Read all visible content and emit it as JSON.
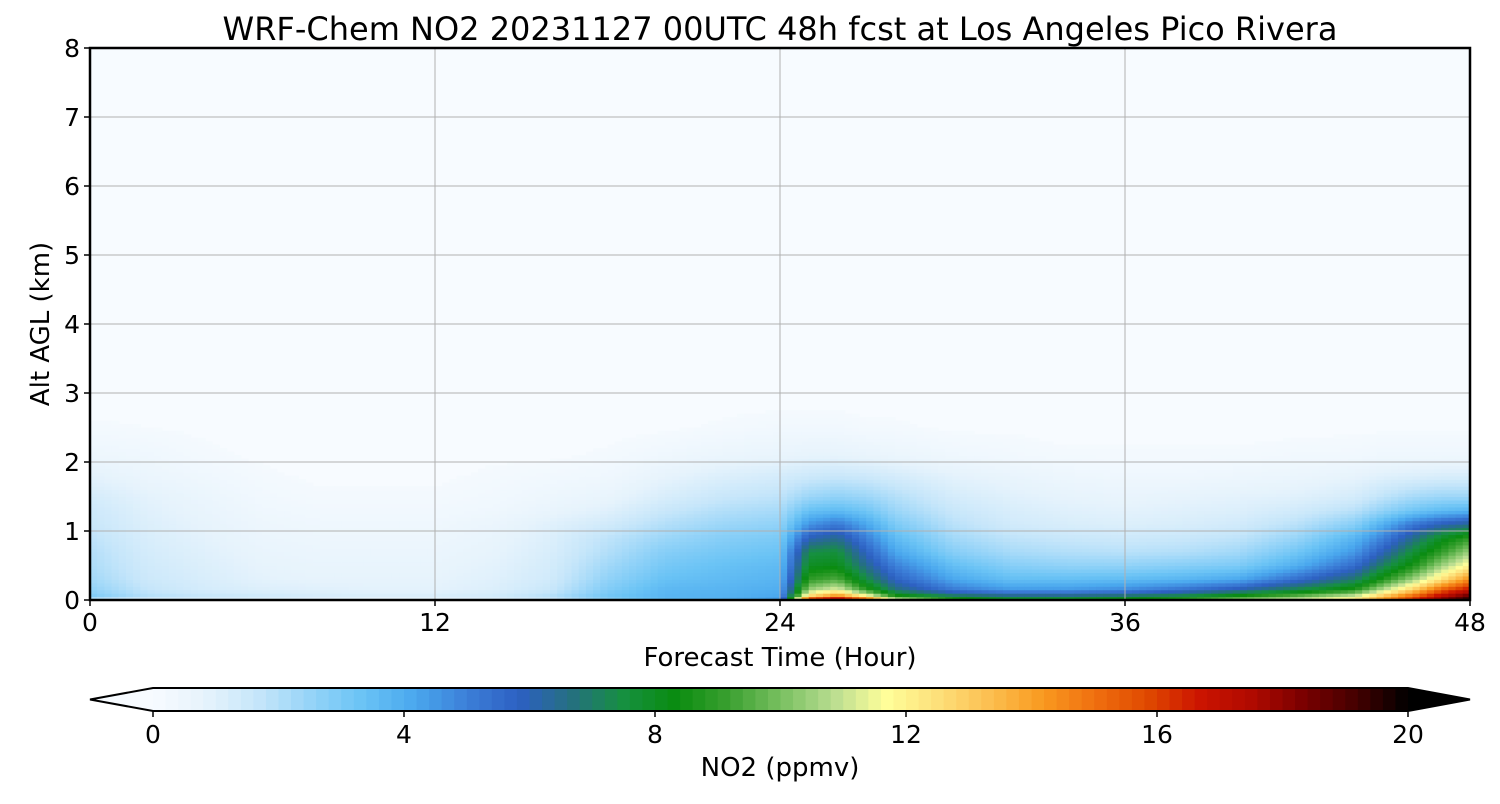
{
  "chart_data": {
    "type": "heatmap",
    "title": "WRF-Chem NO2  20231127 00UTC 48h fcst at Los Angeles Pico Rivera",
    "xlabel": "Forecast Time (Hour)",
    "ylabel": "Alt AGL (km)",
    "xlim": [
      0,
      48
    ],
    "ylim": [
      0,
      8
    ],
    "xticks": [
      "0",
      "12",
      "24",
      "36",
      "48"
    ],
    "yticks": [
      "0",
      "1",
      "2",
      "3",
      "4",
      "5",
      "6",
      "7",
      "8"
    ],
    "grid": true,
    "colorbar": {
      "label": "NO2  (ppmv)",
      "range": [
        0,
        20
      ],
      "ticks": [
        "0",
        "4",
        "8",
        "12",
        "16",
        "20"
      ],
      "extend": "both",
      "colors": [
        "#f7fbff",
        "#e6f3fc",
        "#c6e6fa",
        "#96d4f8",
        "#6ac3f5",
        "#4aa8ee",
        "#3c7fd8",
        "#2d60c2",
        "#257080",
        "#169040",
        "#0a8c10",
        "#3aa030",
        "#78c060",
        "#b8dc90",
        "#ffff9a",
        "#fde07a",
        "#fcbf50",
        "#f99a20",
        "#f07010",
        "#e04a00",
        "#cc1400",
        "#b00a00",
        "#7a0000",
        "#450000",
        "#000000"
      ]
    },
    "x": [
      0,
      2,
      4,
      6,
      8,
      10,
      12,
      14,
      16,
      18,
      20,
      22,
      24,
      25,
      26,
      27,
      28,
      30,
      32,
      34,
      36,
      38,
      40,
      42,
      44,
      45,
      46,
      47,
      48
    ],
    "y": [
      0,
      0.05,
      0.15,
      0.3,
      0.5,
      0.7,
      0.9,
      1.1,
      1.3,
      1.5,
      1.8,
      2.1,
      2.5,
      3,
      8
    ],
    "z": [
      [
        1.2,
        0.8,
        0.8,
        0.8,
        0.6,
        0.5,
        0.6,
        0.8,
        1.2,
        2.5,
        3.5,
        3.8,
        4.5,
        18.0,
        19.0,
        17.0,
        12.0,
        9.5,
        8.5,
        8.5,
        9.0,
        9.5,
        10.5,
        11.5,
        12.5,
        14.5,
        16.5,
        18.5,
        20.0
      ],
      [
        3.0,
        2.0,
        1.7,
        1.5,
        1.3,
        1.2,
        1.2,
        1.4,
        2.0,
        3.2,
        3.8,
        3.9,
        4.2,
        13.0,
        15.0,
        12.5,
        9.0,
        7.5,
        7.0,
        7.0,
        7.3,
        7.8,
        9.0,
        10.0,
        11.5,
        13.5,
        15.5,
        17.5,
        19.0
      ],
      [
        2.6,
        1.7,
        1.3,
        1.1,
        1.0,
        0.9,
        0.9,
        1.1,
        1.6,
        2.9,
        3.7,
        3.8,
        4.0,
        10.5,
        11.5,
        9.0,
        6.8,
        5.2,
        4.5,
        4.5,
        4.8,
        5.4,
        6.2,
        7.5,
        8.8,
        11.0,
        13.0,
        15.5,
        17.0
      ],
      [
        2.3,
        1.5,
        1.2,
        0.9,
        0.8,
        0.8,
        0.8,
        1.0,
        1.4,
        2.6,
        3.4,
        3.6,
        3.8,
        9.0,
        9.5,
        7.5,
        5.8,
        4.2,
        3.5,
        3.5,
        3.6,
        3.8,
        4.2,
        5.5,
        7.0,
        8.8,
        10.5,
        12.5,
        14.5
      ],
      [
        2.1,
        1.4,
        1.1,
        0.8,
        0.7,
        0.7,
        0.7,
        0.9,
        1.3,
        2.3,
        3.1,
        3.4,
        3.6,
        8.0,
        8.2,
        6.5,
        5.0,
        3.5,
        2.8,
        2.6,
        2.6,
        2.8,
        3.0,
        4.0,
        5.5,
        7.2,
        8.6,
        10.5,
        12.0
      ],
      [
        2.0,
        1.3,
        1.0,
        0.7,
        0.6,
        0.6,
        0.6,
        0.8,
        1.2,
        2.0,
        2.8,
        3.1,
        3.3,
        7.4,
        7.6,
        5.8,
        4.2,
        2.8,
        2.2,
        2.0,
        1.9,
        2.0,
        2.3,
        3.2,
        4.5,
        6.0,
        7.6,
        9.0,
        10.5
      ],
      [
        1.8,
        1.2,
        0.9,
        0.6,
        0.5,
        0.5,
        0.5,
        0.7,
        1.1,
        1.8,
        2.4,
        2.8,
        3.0,
        6.0,
        6.5,
        5.0,
        3.6,
        2.3,
        1.8,
        1.6,
        1.5,
        1.6,
        1.8,
        2.5,
        3.8,
        5.0,
        6.5,
        8.0,
        9.0
      ],
      [
        1.6,
        1.1,
        0.8,
        0.5,
        0.4,
        0.4,
        0.4,
        0.6,
        1.0,
        1.4,
        2.0,
        2.4,
        2.6,
        4.6,
        5.2,
        4.2,
        3.0,
        1.9,
        1.4,
        1.2,
        1.1,
        1.2,
        1.4,
        1.9,
        2.8,
        4.0,
        5.2,
        6.0,
        6.5
      ],
      [
        1.5,
        1.0,
        0.7,
        0.4,
        0.3,
        0.3,
        0.3,
        0.4,
        0.7,
        1.0,
        1.6,
        2.0,
        2.2,
        3.4,
        3.6,
        3.2,
        2.4,
        1.6,
        1.2,
        1.0,
        0.9,
        1.0,
        1.1,
        1.4,
        1.9,
        2.6,
        3.2,
        3.6,
        3.8
      ],
      [
        1.3,
        0.9,
        0.6,
        0.3,
        0.2,
        0.2,
        0.2,
        0.3,
        0.5,
        0.7,
        1.2,
        1.6,
        1.8,
        2.4,
        2.6,
        2.4,
        2.0,
        1.3,
        1.0,
        0.8,
        0.7,
        0.8,
        0.9,
        1.0,
        1.3,
        1.8,
        2.2,
        2.4,
        2.4
      ],
      [
        0.9,
        0.6,
        0.4,
        0.2,
        0.1,
        0.1,
        0.1,
        0.2,
        0.3,
        0.4,
        0.8,
        1.1,
        1.3,
        1.5,
        1.6,
        1.5,
        1.3,
        0.9,
        0.7,
        0.5,
        0.4,
        0.4,
        0.5,
        0.6,
        0.8,
        1.0,
        1.1,
        1.2,
        1.2
      ],
      [
        0.5,
        0.4,
        0.2,
        0.1,
        0.05,
        0.05,
        0.05,
        0.1,
        0.1,
        0.2,
        0.4,
        0.6,
        0.7,
        0.8,
        0.8,
        0.7,
        0.6,
        0.4,
        0.3,
        0.2,
        0.2,
        0.2,
        0.2,
        0.3,
        0.3,
        0.4,
        0.4,
        0.4,
        0.4
      ],
      [
        0.2,
        0.15,
        0.1,
        0.05,
        0.0,
        0.0,
        0.0,
        0.0,
        0.05,
        0.05,
        0.1,
        0.2,
        0.3,
        0.3,
        0.3,
        0.2,
        0.2,
        0.1,
        0.1,
        0.05,
        0.05,
        0.05,
        0.05,
        0.05,
        0.1,
        0.1,
        0.1,
        0.1,
        0.1
      ],
      [
        0.0,
        0.0,
        0.0,
        0.0,
        0.0,
        0.0,
        0.0,
        0.0,
        0.0,
        0.0,
        0.0,
        0.0,
        0.0,
        0.0,
        0.0,
        0.0,
        0.0,
        0.0,
        0.0,
        0.0,
        0.0,
        0.0,
        0.0,
        0.0,
        0.0,
        0.0,
        0.0,
        0.0,
        0.0
      ],
      [
        0.0,
        0.0,
        0.0,
        0.0,
        0.0,
        0.0,
        0.0,
        0.0,
        0.0,
        0.0,
        0.0,
        0.0,
        0.0,
        0.0,
        0.0,
        0.0,
        0.0,
        0.0,
        0.0,
        0.0,
        0.0,
        0.0,
        0.0,
        0.0,
        0.0,
        0.0,
        0.0,
        0.0,
        0.0
      ]
    ]
  }
}
